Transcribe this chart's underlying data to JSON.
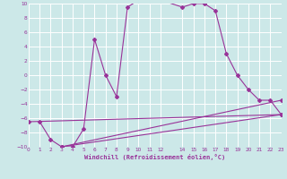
{
  "background_color": "#cce8e8",
  "grid_color": "#ffffff",
  "line_color": "#993399",
  "xlabel": "Windchill (Refroidissement éolien,°C)",
  "xlim": [
    0,
    23
  ],
  "ylim": [
    -10,
    10
  ],
  "xticks": [
    0,
    1,
    2,
    3,
    4,
    5,
    6,
    7,
    8,
    9,
    10,
    11,
    12,
    14,
    15,
    16,
    17,
    18,
    19,
    20,
    21,
    22,
    23
  ],
  "yticks": [
    -10,
    -8,
    -6,
    -4,
    -2,
    0,
    2,
    4,
    6,
    8,
    10
  ],
  "line1_x": [
    1,
    2,
    3,
    4,
    5,
    6,
    7,
    8,
    9,
    10,
    11,
    12,
    14,
    15,
    16,
    17,
    18,
    19,
    20,
    21,
    22,
    23
  ],
  "line1_y": [
    -6.5,
    -9.0,
    -10.0,
    -10.0,
    -7.5,
    5.0,
    0.0,
    -3.0,
    9.5,
    10.5,
    10.5,
    10.5,
    9.5,
    10.0,
    10.0,
    9.0,
    3.0,
    0.0,
    -2.0,
    -3.5,
    -3.5,
    -5.5
  ],
  "line2_x": [
    0,
    23
  ],
  "line2_y": [
    -6.5,
    -5.5
  ],
  "line3_x": [
    3,
    23
  ],
  "line3_y": [
    -10.0,
    -5.5
  ],
  "line4_x": [
    3,
    23
  ],
  "line4_y": [
    -10.0,
    -3.5
  ]
}
